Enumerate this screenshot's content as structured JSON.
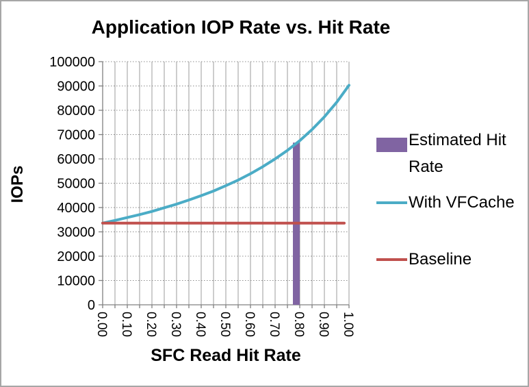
{
  "chart_data": {
    "type": "combo",
    "title": "Application IOP Rate vs. Hit Rate",
    "xlabel": "SFC Read Hit Rate",
    "ylabel": "IOPs",
    "xlim": [
      0,
      1.0
    ],
    "ylim": [
      0,
      100000
    ],
    "grid": {
      "vertical_step": 0.05,
      "vertical_style": "solid",
      "horizontal_step": 10000,
      "horizontal_style": "dotted"
    },
    "x_tick_labels": [
      "0.00",
      "0.10",
      "0.20",
      "0.30",
      "0.40",
      "0.50",
      "0.60",
      "0.70",
      "0.80",
      "0.90",
      "1.00"
    ],
    "y_tick_labels": [
      "0",
      "10000",
      "20000",
      "30000",
      "40000",
      "50000",
      "60000",
      "70000",
      "80000",
      "90000",
      "100000"
    ],
    "legend_position": "right",
    "series": [
      {
        "name": "Estimated Hit Rate",
        "type": "bar",
        "color": "#8064A2",
        "x": [
          0.8
        ],
        "values": [
          66700
        ]
      },
      {
        "name": "With VFCache",
        "type": "line",
        "color": "#4BACC6",
        "x": [
          0.0,
          0.05,
          0.1,
          0.15,
          0.2,
          0.25,
          0.3,
          0.35,
          0.4,
          0.45,
          0.5,
          0.55,
          0.6,
          0.65,
          0.7,
          0.75,
          0.8,
          0.85,
          0.9,
          0.95,
          1.0
        ],
        "values": [
          33600,
          34700,
          35900,
          37100,
          38400,
          39900,
          41400,
          43100,
          44900,
          46800,
          49000,
          51300,
          53900,
          56800,
          60000,
          63500,
          67500,
          72100,
          77300,
          83300,
          90300
        ]
      },
      {
        "name": "Baseline",
        "type": "line",
        "color": "#C0504D",
        "x": [
          0.0,
          1.0
        ],
        "values": [
          33600,
          33600
        ]
      }
    ]
  }
}
